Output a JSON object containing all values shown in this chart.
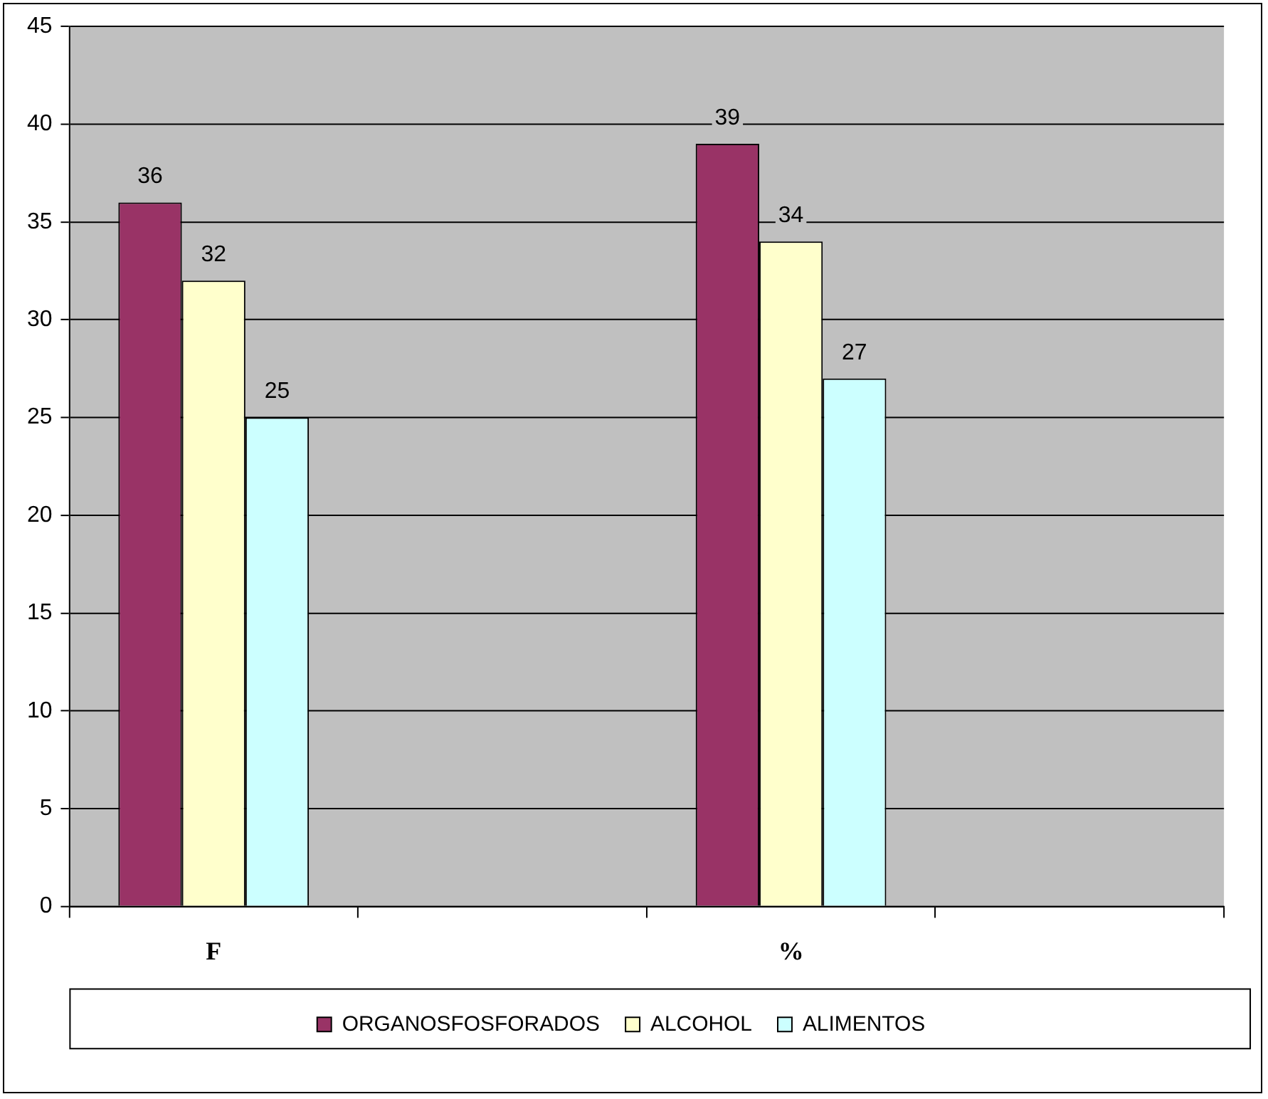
{
  "chart_data": {
    "type": "bar",
    "categories": [
      "F",
      null,
      "%",
      null
    ],
    "series": [
      {
        "name": "ORGANOSFOSFORADOS",
        "color": "#993366",
        "values": [
          36,
          null,
          39,
          null
        ]
      },
      {
        "name": "ALCOHOL",
        "color": "#ffffcc",
        "values": [
          32,
          null,
          34,
          null
        ]
      },
      {
        "name": "ALIMENTOS",
        "color": "#ccffff",
        "values": [
          25,
          null,
          27,
          null
        ]
      }
    ],
    "ylim": [
      0,
      45
    ],
    "yticks": [
      0,
      5,
      10,
      15,
      20,
      25,
      30,
      35,
      40,
      45
    ],
    "grid": "y",
    "legend": "bottom",
    "data_labels": true
  }
}
